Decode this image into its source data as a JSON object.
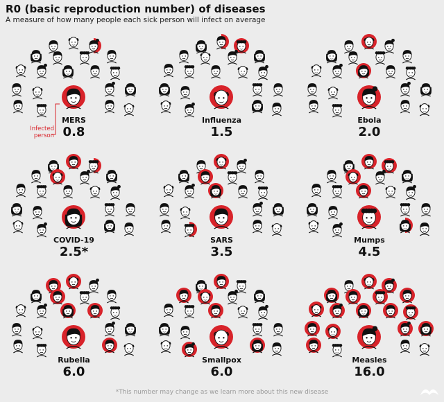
{
  "title": "R0 (basic reproduction number) of diseases",
  "subtitle": "A measure of how many people each sick person will infect on average",
  "callout": "Infected person",
  "footnote": "*This number may change as we learn more about this new disease",
  "colors": {
    "infected": "#d8232a",
    "face": "#ffffff",
    "hair": "#111111",
    "background": "#ececec"
  },
  "chart_data": {
    "type": "pictograph",
    "diseases": [
      {
        "name": "MERS",
        "r0_label": "0.8",
        "r0": 0.8
      },
      {
        "name": "Influenza",
        "r0_label": "1.5",
        "r0": 1.5
      },
      {
        "name": "Ebola",
        "r0_label": "2.0",
        "r0": 2.0
      },
      {
        "name": "COVID-19",
        "r0_label": "2.5*",
        "r0": 2.5
      },
      {
        "name": "SARS",
        "r0_label": "3.5",
        "r0": 3.5
      },
      {
        "name": "Mumps",
        "r0_label": "4.5",
        "r0": 4.5
      },
      {
        "name": "Rubella",
        "r0_label": "6.0",
        "r0": 6.0
      },
      {
        "name": "Smallpox",
        "r0_label": "6.0",
        "r0": 6.0
      },
      {
        "name": "Measles",
        "r0_label": "16.0",
        "r0": 16.0
      }
    ]
  }
}
